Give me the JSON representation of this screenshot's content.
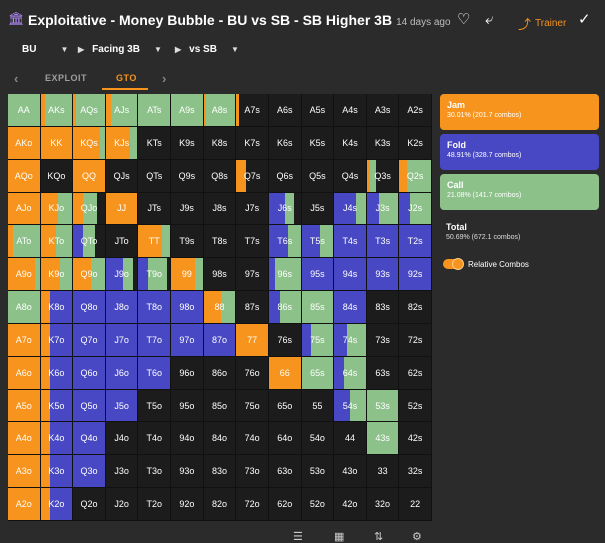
{
  "header": {
    "title": "Exploitative - Money Bubble - BU vs SB - SB Higher 3B",
    "time_ago": "14 days ago",
    "trainer_label": "Trainer",
    "icons": [
      "bank-logo-icon",
      "heart-icon",
      "share-icon",
      "trainer-icon",
      "check-icon"
    ]
  },
  "filters": [
    {
      "label": "BU"
    },
    {
      "label": "Facing 3B"
    },
    {
      "label": "vs SB"
    }
  ],
  "tabs": [
    {
      "label": "EXPLOIT",
      "active": false
    },
    {
      "label": "GTO",
      "active": true
    }
  ],
  "legend": {
    "jam": {
      "label": "Jam",
      "value": "30.01% (201.7 combos)",
      "color": "#f7941d"
    },
    "fold": {
      "label": "Fold",
      "value": "48.91% (328.7 combos)",
      "color": "#4848c4"
    },
    "call": {
      "label": "Call",
      "value": "21.08% (141.7 combos)",
      "color": "#8cc18a"
    },
    "total": {
      "label": "Total",
      "value": "50.69% (672.1 combos)"
    },
    "toggle_label": "Relative Combos"
  },
  "colors": {
    "jam": "#f7941d",
    "fold": "#4848c4",
    "call": "#8cc18a",
    "empty": "#1c1c1c"
  },
  "grid": {
    "labels": [
      [
        "AA",
        "AKs",
        "AQs",
        "AJs",
        "ATs",
        "A9s",
        "A8s",
        "A7s",
        "A6s",
        "A5s",
        "A4s",
        "A3s",
        "A2s"
      ],
      [
        "AKo",
        "KK",
        "KQs",
        "KJs",
        "KTs",
        "K9s",
        "K8s",
        "K7s",
        "K6s",
        "K5s",
        "K4s",
        "K3s",
        "K2s"
      ],
      [
        "AQo",
        "KQo",
        "QQ",
        "QJs",
        "QTs",
        "Q9s",
        "Q8s",
        "Q7s",
        "Q6s",
        "Q5s",
        "Q4s",
        "Q3s",
        "Q2s"
      ],
      [
        "AJo",
        "KJo",
        "QJo",
        "JJ",
        "JTs",
        "J9s",
        "J8s",
        "J7s",
        "J6s",
        "J5s",
        "J4s",
        "J3s",
        "J2s"
      ],
      [
        "ATo",
        "KTo",
        "QTo",
        "JTo",
        "TT",
        "T9s",
        "T8s",
        "T7s",
        "T6s",
        "T5s",
        "T4s",
        "T3s",
        "T2s"
      ],
      [
        "A9o",
        "K9o",
        "Q9o",
        "J9o",
        "T9o",
        "99",
        "98s",
        "97s",
        "96s",
        "95s",
        "94s",
        "93s",
        "92s"
      ],
      [
        "A8o",
        "K8o",
        "Q8o",
        "J8o",
        "T8o",
        "98o",
        "88",
        "87s",
        "86s",
        "85s",
        "84s",
        "83s",
        "82s"
      ],
      [
        "A7o",
        "K7o",
        "Q7o",
        "J7o",
        "T7o",
        "97o",
        "87o",
        "77",
        "76s",
        "75s",
        "74s",
        "73s",
        "72s"
      ],
      [
        "A6o",
        "K6o",
        "Q6o",
        "J6o",
        "T6o",
        "96o",
        "86o",
        "76o",
        "66",
        "65s",
        "64s",
        "63s",
        "62s"
      ],
      [
        "A5o",
        "K5o",
        "Q5o",
        "J5o",
        "T5o",
        "95o",
        "85o",
        "75o",
        "65o",
        "55",
        "54s",
        "53s",
        "52s"
      ],
      [
        "A4o",
        "K4o",
        "Q4o",
        "J4o",
        "T4o",
        "94o",
        "84o",
        "74o",
        "64o",
        "54o",
        "44",
        "43s",
        "42s"
      ],
      [
        "A3o",
        "K3o",
        "Q3o",
        "J3o",
        "T3o",
        "93o",
        "83o",
        "73o",
        "63o",
        "53o",
        "43o",
        "33",
        "32s"
      ],
      [
        "A2o",
        "K2o",
        "Q2o",
        "J2o",
        "T2o",
        "92o",
        "82o",
        "72o",
        "62o",
        "52o",
        "42o",
        "32o",
        "22"
      ]
    ],
    "mix": [
      [
        [
          0,
          0,
          1
        ],
        [
          0.15,
          0,
          0.85
        ],
        [
          0.1,
          0,
          0.9
        ],
        [
          0.15,
          0,
          0.85
        ],
        [
          0,
          0,
          1
        ],
        [
          0,
          0,
          1
        ],
        [
          0.08,
          0,
          0.92
        ],
        [
          0.08,
          0,
          0
        ],
        [
          0,
          0,
          0
        ],
        [
          0,
          0,
          0
        ],
        [
          0,
          0,
          0
        ],
        [
          0,
          0,
          0
        ],
        [
          0,
          0,
          0
        ]
      ],
      [
        [
          1,
          0,
          0
        ],
        [
          1,
          0,
          0
        ],
        [
          0.85,
          0,
          0.15
        ],
        [
          0.75,
          0,
          0.25
        ],
        [
          0,
          0,
          0
        ],
        [
          0,
          0,
          0
        ],
        [
          0,
          0,
          0
        ],
        [
          0,
          0,
          0
        ],
        [
          0,
          0,
          0
        ],
        [
          0,
          0,
          0
        ],
        [
          0,
          0,
          0
        ],
        [
          0,
          0,
          0
        ],
        [
          0,
          0,
          0
        ]
      ],
      [
        [
          1,
          0,
          0
        ],
        [
          0,
          0,
          0
        ],
        [
          1,
          0,
          0
        ],
        [
          0,
          0,
          0
        ],
        [
          0,
          0,
          0
        ],
        [
          0,
          0,
          0
        ],
        [
          0,
          0,
          0
        ],
        [
          0.3,
          0,
          0
        ],
        [
          0,
          0,
          0
        ],
        [
          0,
          0,
          0
        ],
        [
          0,
          0,
          0
        ],
        [
          0.1,
          0,
          0.2
        ],
        [
          0.25,
          0,
          0.75
        ]
      ],
      [
        [
          1,
          0,
          0
        ],
        [
          0.55,
          0,
          0.45
        ],
        [
          0.3,
          0,
          0.45
        ],
        [
          1,
          0,
          0
        ],
        [
          0,
          0,
          0
        ],
        [
          0,
          0,
          0
        ],
        [
          0,
          0,
          0
        ],
        [
          0,
          0,
          0
        ],
        [
          0,
          0.5,
          0.3
        ],
        [
          0,
          0,
          0
        ],
        [
          0,
          0.7,
          0.3
        ],
        [
          0,
          0.4,
          0.6
        ],
        [
          0,
          0.35,
          0.65
        ]
      ],
      [
        [
          0.15,
          0,
          0.85
        ],
        [
          0.5,
          0,
          0.5
        ],
        [
          0,
          0.3,
          0.4
        ],
        [
          0,
          0,
          0
        ],
        [
          0.75,
          0,
          0.25
        ],
        [
          0,
          0,
          0
        ],
        [
          0,
          0,
          0
        ],
        [
          0,
          0,
          0
        ],
        [
          0,
          0.6,
          0.4
        ],
        [
          0,
          0.6,
          0.4
        ],
        [
          0,
          1,
          0
        ],
        [
          0,
          1,
          0
        ],
        [
          0,
          1,
          0
        ]
      ],
      [
        [
          0.85,
          0,
          0.15
        ],
        [
          0.6,
          0,
          0.4
        ],
        [
          0.55,
          0,
          0.45
        ],
        [
          0,
          0.55,
          0.3
        ],
        [
          0,
          0.3,
          0.6
        ],
        [
          0.75,
          0,
          0.25
        ],
        [
          0,
          0,
          0
        ],
        [
          0,
          0,
          0
        ],
        [
          0,
          0.2,
          0.8
        ],
        [
          0,
          1,
          0
        ],
        [
          0,
          1,
          0
        ],
        [
          0,
          1,
          0
        ],
        [
          0,
          1,
          0
        ]
      ],
      [
        [
          0,
          0,
          1
        ],
        [
          0.3,
          0.7,
          0
        ],
        [
          0,
          1,
          0
        ],
        [
          0,
          1,
          0
        ],
        [
          0,
          1,
          0
        ],
        [
          0,
          1,
          0
        ],
        [
          0.55,
          0,
          0.45
        ],
        [
          0,
          0,
          0
        ],
        [
          0,
          0.35,
          0.65
        ],
        [
          0,
          0,
          1
        ],
        [
          0,
          1,
          0
        ],
        [
          0,
          0,
          0
        ],
        [
          0,
          0,
          0
        ]
      ],
      [
        [
          1,
          0,
          0
        ],
        [
          0.3,
          0.7,
          0
        ],
        [
          0,
          1,
          0
        ],
        [
          0,
          1,
          0
        ],
        [
          0,
          1,
          0
        ],
        [
          0,
          1,
          0
        ],
        [
          0,
          1,
          0
        ],
        [
          1,
          0,
          0
        ],
        [
          0,
          0,
          0
        ],
        [
          0,
          0.3,
          0.7
        ],
        [
          0,
          0.4,
          0.6
        ],
        [
          0,
          0,
          0
        ],
        [
          0,
          0,
          0
        ]
      ],
      [
        [
          1,
          0,
          0
        ],
        [
          0.3,
          0.7,
          0
        ],
        [
          0,
          1,
          0
        ],
        [
          0,
          1,
          0
        ],
        [
          0,
          1,
          0
        ],
        [
          0,
          0,
          0
        ],
        [
          0,
          0,
          0
        ],
        [
          0,
          0,
          0
        ],
        [
          1,
          0,
          0
        ],
        [
          0,
          0,
          1
        ],
        [
          0,
          0.3,
          0.7
        ],
        [
          0,
          0,
          0
        ],
        [
          0,
          0,
          0
        ]
      ],
      [
        [
          1,
          0,
          0
        ],
        [
          0.3,
          0.7,
          0
        ],
        [
          0,
          1,
          0
        ],
        [
          0,
          1,
          0
        ],
        [
          0,
          0,
          0
        ],
        [
          0,
          0,
          0
        ],
        [
          0,
          0,
          0
        ],
        [
          0,
          0,
          0
        ],
        [
          0,
          0,
          0
        ],
        [
          0,
          0,
          0
        ],
        [
          0,
          0.5,
          0.5
        ],
        [
          0,
          0,
          1
        ],
        [
          0,
          0,
          0
        ]
      ],
      [
        [
          1,
          0,
          0
        ],
        [
          0.3,
          0.7,
          0
        ],
        [
          0,
          1,
          0
        ],
        [
          0,
          0,
          0
        ],
        [
          0,
          0,
          0
        ],
        [
          0,
          0,
          0
        ],
        [
          0,
          0,
          0
        ],
        [
          0,
          0,
          0
        ],
        [
          0,
          0,
          0
        ],
        [
          0,
          0,
          0
        ],
        [
          0,
          0,
          0
        ],
        [
          0,
          0,
          1
        ],
        [
          0,
          0,
          0
        ]
      ],
      [
        [
          1,
          0,
          0
        ],
        [
          0.3,
          0.7,
          0
        ],
        [
          0,
          1,
          0
        ],
        [
          0,
          0,
          0
        ],
        [
          0,
          0,
          0
        ],
        [
          0,
          0,
          0
        ],
        [
          0,
          0,
          0
        ],
        [
          0,
          0,
          0
        ],
        [
          0,
          0,
          0
        ],
        [
          0,
          0,
          0
        ],
        [
          0,
          0,
          0
        ],
        [
          0,
          0,
          0
        ],
        [
          0,
          0,
          0
        ]
      ],
      [
        [
          1,
          0,
          0
        ],
        [
          0.3,
          0.7,
          0
        ],
        [
          0,
          0,
          0
        ],
        [
          0,
          0,
          0
        ],
        [
          0,
          0,
          0
        ],
        [
          0,
          0,
          0
        ],
        [
          0,
          0,
          0
        ],
        [
          0,
          0,
          0
        ],
        [
          0,
          0,
          0
        ],
        [
          0,
          0,
          0
        ],
        [
          0,
          0,
          0
        ],
        [
          0,
          0,
          0
        ],
        [
          0,
          0,
          0
        ]
      ]
    ]
  }
}
